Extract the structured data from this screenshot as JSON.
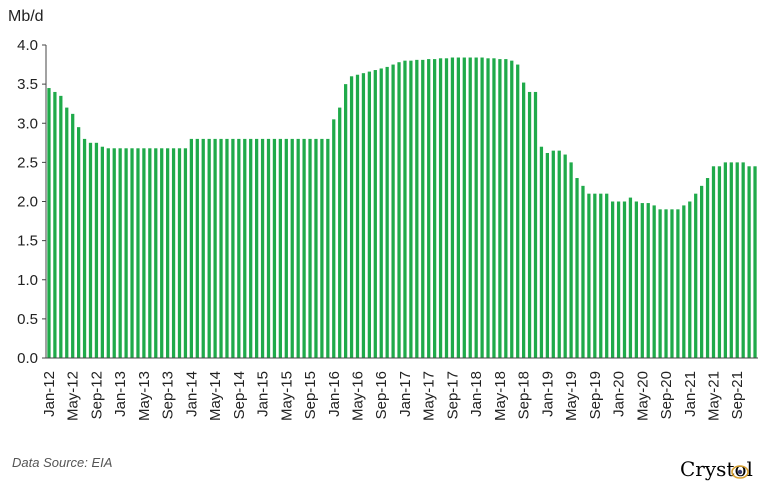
{
  "chart_data": {
    "type": "bar",
    "ylabel": "Mb/d",
    "ylim": [
      0,
      4.0
    ],
    "yticks": [
      "0.0",
      "0.5",
      "1.0",
      "1.5",
      "2.0",
      "2.5",
      "3.0",
      "3.5",
      "4.0"
    ],
    "xtick_labels": [
      "Jan-12",
      "May-12",
      "Sep-12",
      "Jan-13",
      "May-13",
      "Sep-13",
      "Jan-14",
      "May-14",
      "Sep-14",
      "Jan-15",
      "May-15",
      "Sep-15",
      "Jan-16",
      "May-16",
      "Sep-16",
      "Jan-17",
      "May-17",
      "Sep-17",
      "Jan-18",
      "May-18",
      "Sep-18",
      "Jan-19",
      "May-19",
      "Sep-19",
      "Jan-20",
      "May-20",
      "Sep-20",
      "Jan-21",
      "May-21",
      "Sep-21"
    ],
    "start_month": "Jan-12",
    "bar_color": "#1faa4a",
    "values": [
      3.45,
      3.4,
      3.35,
      3.2,
      3.12,
      2.95,
      2.8,
      2.75,
      2.75,
      2.7,
      2.68,
      2.68,
      2.68,
      2.68,
      2.68,
      2.68,
      2.68,
      2.68,
      2.68,
      2.68,
      2.68,
      2.68,
      2.68,
      2.68,
      2.8,
      2.8,
      2.8,
      2.8,
      2.8,
      2.8,
      2.8,
      2.8,
      2.8,
      2.8,
      2.8,
      2.8,
      2.8,
      2.8,
      2.8,
      2.8,
      2.8,
      2.8,
      2.8,
      2.8,
      2.8,
      2.8,
      2.8,
      2.8,
      3.05,
      3.2,
      3.5,
      3.6,
      3.62,
      3.64,
      3.66,
      3.68,
      3.7,
      3.72,
      3.75,
      3.78,
      3.8,
      3.8,
      3.81,
      3.81,
      3.82,
      3.82,
      3.83,
      3.83,
      3.84,
      3.84,
      3.84,
      3.84,
      3.84,
      3.84,
      3.83,
      3.83,
      3.82,
      3.82,
      3.8,
      3.75,
      3.52,
      3.4,
      3.4,
      2.7,
      2.62,
      2.65,
      2.65,
      2.6,
      2.5,
      2.3,
      2.2,
      2.1,
      2.1,
      2.1,
      2.1,
      2.0,
      2.0,
      2.0,
      2.05,
      2.0,
      1.98,
      1.98,
      1.95,
      1.9,
      1.9,
      1.9,
      1.9,
      1.95,
      2.0,
      2.1,
      2.2,
      2.3,
      2.45,
      2.45,
      2.5,
      2.5,
      2.5,
      2.5,
      2.45,
      2.45
    ]
  },
  "footer": {
    "source": "Data Source: EIA",
    "logo_text": "Crystol"
  }
}
